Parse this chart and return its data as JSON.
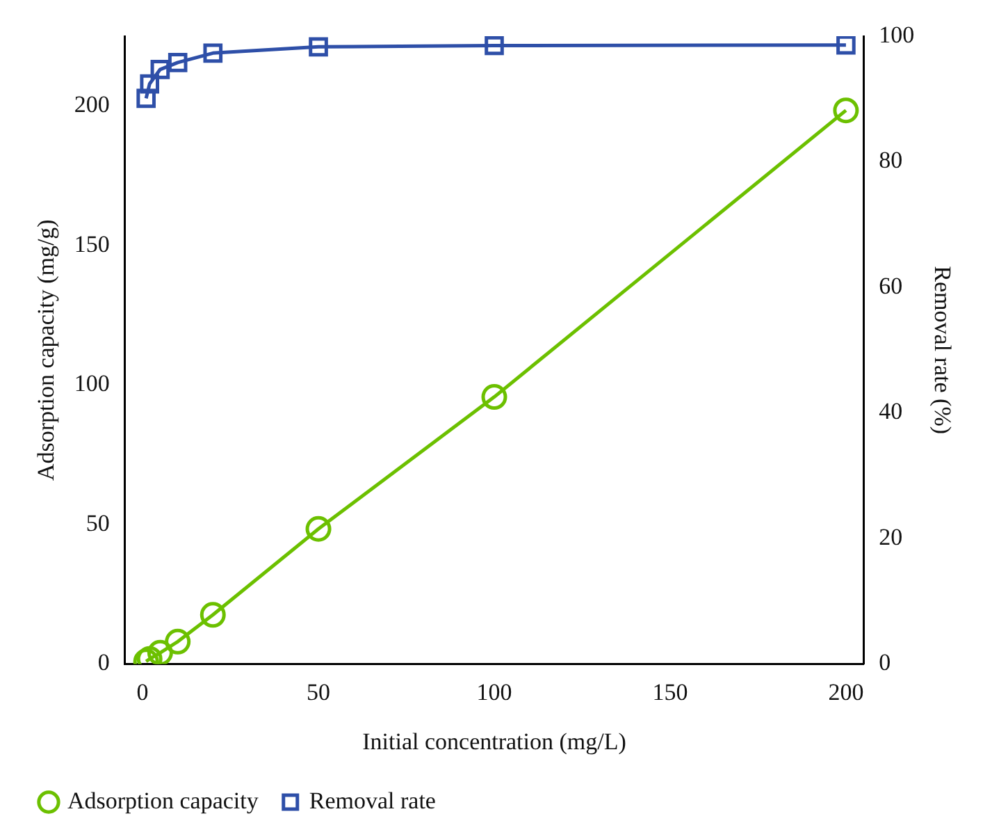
{
  "chart_data": {
    "type": "line",
    "xlabel": "Initial concentration (mg/L)",
    "ylabel": "Adsorption capacity (mg/g)",
    "y2label": "Removal rate (%)",
    "x": [
      1,
      2,
      5,
      10,
      20,
      50,
      100,
      200
    ],
    "series": [
      {
        "name": "Adsorption capacity",
        "color": "#6cc000",
        "marker": "circle",
        "values": [
          0.9,
          1.8,
          4,
          8,
          17.6,
          48.4,
          95.7,
          198.4
        ]
      },
      {
        "name": "Removal rate",
        "color": "#2e4fa8",
        "marker": "square",
        "axis": "y2",
        "values": [
          90.1,
          92.4,
          94.7,
          95.8,
          97.3,
          98.3,
          98.5,
          98.6
        ]
      }
    ],
    "xlim": [
      -5,
      205
    ],
    "xticks": [
      0,
      50,
      100,
      150,
      200
    ],
    "ylim": [
      0,
      225
    ],
    "yticks": [
      0,
      50,
      100,
      150,
      200
    ],
    "y2lim": [
      0,
      100
    ],
    "y2ticks": [
      0,
      20,
      40,
      60,
      80,
      100
    ],
    "grid": false,
    "legend": "bottom"
  }
}
